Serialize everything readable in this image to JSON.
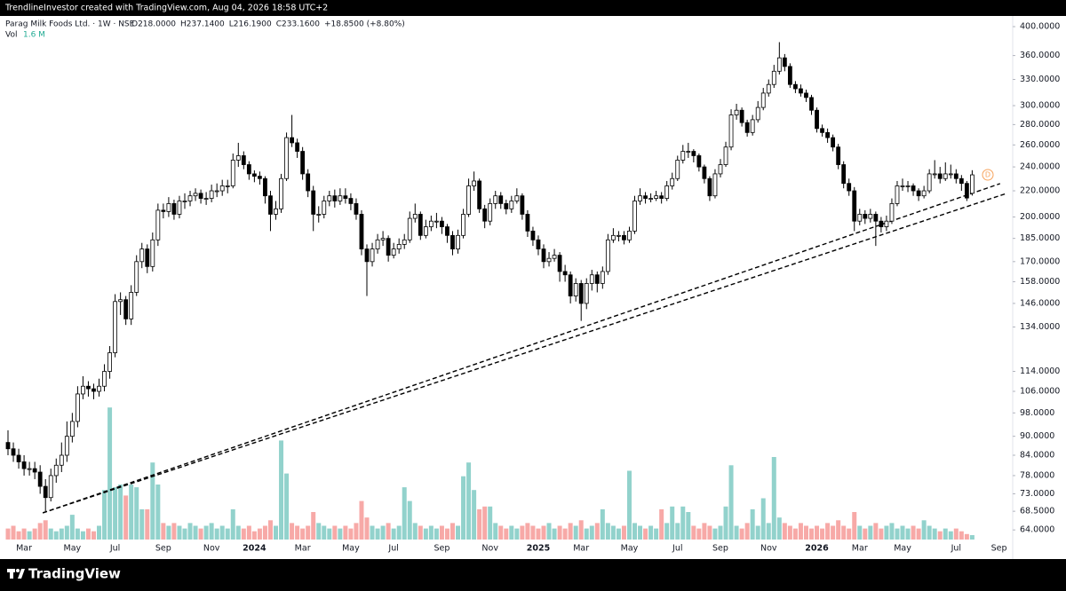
{
  "top_bar": "TrendlineInvestor created with TradingView.com, Aug 04, 2026 18:58 UTC+2",
  "branding": "TradingView",
  "chart_data": {
    "type": "candlestick",
    "symbol": "Parag Milk Foods Ltd. · 1W · NSE",
    "header_ohlc": [
      "O218.0000",
      "H237.1400",
      "L216.1900",
      "C233.1600"
    ],
    "header_change": "+18.8500 (+8.80%)",
    "volume_legend": {
      "label": "Vol",
      "value": "1.6 M"
    },
    "dividend_marker": "D",
    "log_scale": true,
    "grid": false,
    "candle_colors": {
      "up": "#ffffff",
      "down": "#000000",
      "border": "#000000"
    },
    "volume_colors": {
      "up": "#92d2cc",
      "down": "#f7a9a7"
    },
    "trendline_color": "#000000",
    "ylim": [
      61.8,
      415.8
    ],
    "vlim": [
      0,
      50
    ],
    "yticks": [
      {
        "value": 400,
        "label": "400.0000"
      },
      {
        "value": 360,
        "label": "360.0000"
      },
      {
        "value": 330,
        "label": "330.0000"
      },
      {
        "value": 300,
        "label": "300.0000"
      },
      {
        "value": 280,
        "label": "280.0000"
      },
      {
        "value": 260,
        "label": "260.0000"
      },
      {
        "value": 240,
        "label": "240.0000"
      },
      {
        "value": 220,
        "label": "220.0000"
      },
      {
        "value": 200,
        "label": "200.0000"
      },
      {
        "value": 185,
        "label": "185.0000"
      },
      {
        "value": 170,
        "label": "170.0000"
      },
      {
        "value": 158,
        "label": "158.0000"
      },
      {
        "value": 146,
        "label": "146.0000"
      },
      {
        "value": 134,
        "label": "134.0000"
      },
      {
        "value": 114,
        "label": "114.0000"
      },
      {
        "value": 106,
        "label": "106.0000"
      },
      {
        "value": 98,
        "label": "98.0000"
      },
      {
        "value": 90,
        "label": "90.0000"
      },
      {
        "value": 84,
        "label": "84.0000"
      },
      {
        "value": 78,
        "label": "78.0000"
      },
      {
        "value": 73,
        "label": "73.0000"
      },
      {
        "value": 68.5,
        "label": "68.5000"
      },
      {
        "value": 64,
        "label": "64.0000"
      }
    ],
    "categories": [
      null,
      null,
      null,
      "Mar",
      null,
      null,
      null,
      null,
      null,
      null,
      null,
      null,
      "May",
      null,
      null,
      null,
      null,
      null,
      null,
      null,
      "Jul",
      null,
      null,
      null,
      null,
      null,
      null,
      null,
      null,
      "Sep",
      null,
      null,
      null,
      null,
      null,
      null,
      null,
      null,
      "Nov",
      null,
      null,
      null,
      null,
      null,
      null,
      null,
      "2024",
      null,
      null,
      null,
      null,
      null,
      null,
      null,
      null,
      "Mar",
      null,
      null,
      null,
      null,
      null,
      null,
      null,
      null,
      "May",
      null,
      null,
      null,
      null,
      null,
      null,
      null,
      "Jul",
      null,
      null,
      null,
      null,
      null,
      null,
      null,
      null,
      "Sep",
      null,
      null,
      null,
      null,
      null,
      null,
      null,
      null,
      "Nov",
      null,
      null,
      null,
      null,
      null,
      null,
      null,
      null,
      "2025",
      null,
      null,
      null,
      null,
      null,
      null,
      null,
      "Mar",
      null,
      null,
      null,
      null,
      null,
      null,
      null,
      null,
      "May",
      null,
      null,
      null,
      null,
      null,
      null,
      null,
      null,
      "Jul",
      null,
      null,
      null,
      null,
      null,
      null,
      null,
      "Sep",
      null,
      null,
      null,
      null,
      null,
      null,
      null,
      null,
      "Nov",
      null,
      null,
      null,
      null,
      null,
      null,
      null,
      null,
      "2026",
      null,
      null,
      null,
      null,
      null,
      null,
      null,
      "Mar",
      null,
      null,
      null,
      null,
      null,
      null,
      null,
      "May",
      null,
      null,
      null,
      null,
      null,
      null,
      null,
      null,
      null,
      "Jul",
      null,
      null,
      null,
      null,
      null,
      null,
      null,
      "Sep"
    ],
    "open": [
      88,
      86,
      84,
      82,
      80,
      80,
      79,
      75,
      72,
      78,
      81,
      84,
      90,
      95,
      105,
      108,
      107,
      106,
      108,
      114,
      122,
      147,
      148,
      138,
      152,
      170,
      178,
      167,
      184,
      205,
      204,
      210,
      202,
      212,
      212,
      216,
      218,
      214,
      214,
      220,
      220,
      224,
      224,
      246,
      250,
      242,
      234,
      232,
      230,
      216,
      202,
      206,
      230,
      267,
      262,
      254,
      234,
      220,
      202,
      202,
      212,
      216,
      212,
      216,
      214,
      210,
      202,
      178,
      170,
      178,
      184,
      185,
      174,
      178,
      181,
      184,
      199,
      202,
      187,
      193,
      197,
      197,
      193,
      187,
      178,
      187,
      202,
      224,
      228,
      206,
      197,
      210,
      216,
      210,
      206,
      212,
      216,
      202,
      190,
      184,
      178,
      170,
      172,
      174,
      164,
      162,
      150,
      157,
      146,
      157,
      162,
      157,
      164,
      184,
      187,
      187,
      184,
      190,
      212,
      216,
      214,
      214,
      216,
      214,
      224,
      230,
      246,
      254,
      254,
      250,
      240,
      230,
      216,
      234,
      242,
      258,
      290,
      295,
      282,
      272,
      285,
      298,
      314,
      324,
      340,
      357,
      346,
      324,
      319,
      314,
      309,
      295,
      276,
      272,
      267,
      258,
      242,
      226,
      220,
      197,
      202,
      199,
      202,
      197,
      193,
      197,
      210,
      224,
      224,
      224,
      220,
      216,
      220,
      234,
      234,
      230,
      234,
      234,
      230,
      226,
      218,
      null,
      null,
      null,
      null,
      null
    ],
    "high": [
      92,
      88,
      86,
      84,
      82,
      82,
      81,
      77,
      80,
      83,
      88,
      95,
      98,
      108,
      112,
      110,
      109,
      111,
      117,
      125,
      151,
      152,
      150,
      156,
      174,
      182,
      181,
      189,
      210,
      210,
      215,
      213,
      216,
      218,
      220,
      222,
      221,
      219,
      225,
      226,
      229,
      229,
      252,
      262,
      254,
      245,
      237,
      236,
      232,
      220,
      212,
      234,
      272,
      290,
      266,
      258,
      238,
      224,
      208,
      216,
      220,
      221,
      222,
      222,
      218,
      214,
      205,
      181,
      182,
      188,
      190,
      187,
      182,
      185,
      188,
      204,
      210,
      204,
      198,
      201,
      203,
      200,
      195,
      190,
      191,
      206,
      230,
      236,
      230,
      209,
      214,
      220,
      219,
      213,
      216,
      222,
      218,
      205,
      193,
      187,
      181,
      176,
      178,
      176,
      168,
      164,
      160,
      159,
      160,
      165,
      164,
      167,
      188,
      192,
      190,
      190,
      193,
      216,
      222,
      219,
      218,
      220,
      219,
      228,
      235,
      250,
      260,
      262,
      256,
      252,
      242,
      232,
      238,
      247,
      263,
      296,
      302,
      298,
      285,
      290,
      305,
      320,
      330,
      348,
      378,
      362,
      350,
      328,
      324,
      318,
      312,
      298,
      280,
      276,
      270,
      261,
      245,
      230,
      223,
      206,
      205,
      206,
      204,
      200,
      201,
      214,
      228,
      230,
      228,
      226,
      222,
      224,
      238,
      246,
      240,
      244,
      242,
      238,
      233,
      228,
      237.14,
      null,
      null,
      null,
      null,
      null
    ],
    "low": [
      84,
      82,
      80,
      78,
      78,
      77,
      73,
      68.5,
      71,
      76,
      79,
      82,
      88,
      93,
      103,
      104,
      103,
      104,
      106,
      111,
      120,
      140,
      135,
      135,
      150,
      166,
      163,
      164,
      180,
      199,
      200,
      198,
      199,
      206,
      208,
      212,
      210,
      209,
      211,
      215,
      216,
      218,
      222,
      240,
      238,
      229,
      227,
      225,
      210,
      190,
      198,
      203,
      228,
      258,
      248,
      229,
      215,
      190,
      196,
      199,
      208,
      207,
      209,
      210,
      205,
      198,
      174,
      150,
      167,
      175,
      180,
      170,
      172,
      175,
      178,
      182,
      196,
      184,
      185,
      190,
      192,
      188,
      182,
      174,
      175,
      185,
      200,
      220,
      203,
      192,
      194,
      206,
      206,
      202,
      203,
      210,
      198,
      186,
      180,
      174,
      166,
      167,
      170,
      158,
      158,
      146,
      147,
      137,
      143,
      153,
      152,
      154,
      162,
      182,
      183,
      181,
      182,
      188,
      209,
      210,
      211,
      212,
      210,
      212,
      221,
      228,
      243,
      248,
      244,
      236,
      226,
      212,
      214,
      231,
      240,
      255,
      285,
      278,
      268,
      269,
      282,
      295,
      310,
      320,
      336,
      340,
      320,
      314,
      310,
      304,
      290,
      272,
      268,
      262,
      254,
      238,
      222,
      216,
      190,
      194,
      195,
      196,
      180,
      189,
      190,
      195,
      208,
      220,
      219,
      216,
      212,
      214,
      218,
      230,
      226,
      228,
      230,
      226,
      220,
      212,
      216.19,
      null,
      null,
      null,
      null,
      null
    ],
    "close": [
      86,
      84,
      82,
      80,
      80,
      79,
      75,
      72,
      78,
      81,
      84,
      90,
      95,
      105,
      108,
      107,
      106,
      108,
      114,
      122,
      147,
      148,
      138,
      152,
      170,
      178,
      167,
      184,
      205,
      204,
      210,
      202,
      212,
      212,
      216,
      218,
      214,
      214,
      220,
      220,
      224,
      224,
      246,
      250,
      242,
      234,
      232,
      230,
      216,
      202,
      206,
      230,
      267,
      262,
      254,
      234,
      220,
      202,
      202,
      212,
      216,
      212,
      216,
      214,
      210,
      202,
      178,
      170,
      178,
      184,
      185,
      174,
      178,
      181,
      184,
      199,
      202,
      187,
      193,
      197,
      197,
      193,
      187,
      178,
      187,
      202,
      224,
      228,
      206,
      197,
      210,
      216,
      210,
      206,
      212,
      216,
      202,
      190,
      184,
      178,
      170,
      172,
      174,
      164,
      162,
      150,
      157,
      146,
      157,
      162,
      157,
      164,
      184,
      187,
      187,
      184,
      190,
      212,
      216,
      214,
      214,
      216,
      214,
      224,
      230,
      246,
      254,
      254,
      250,
      240,
      230,
      216,
      234,
      242,
      258,
      290,
      295,
      282,
      272,
      285,
      298,
      314,
      324,
      340,
      357,
      346,
      324,
      319,
      314,
      309,
      295,
      276,
      272,
      267,
      258,
      242,
      226,
      220,
      197,
      202,
      199,
      202,
      197,
      193,
      197,
      210,
      224,
      224,
      224,
      220,
      216,
      220,
      234,
      234,
      230,
      234,
      234,
      230,
      226,
      214.31,
      233.16,
      null,
      null,
      null,
      null,
      null
    ],
    "volume": [
      4,
      5,
      3,
      4,
      3,
      4,
      6,
      7,
      4,
      3,
      4,
      5,
      9,
      4,
      3,
      4,
      3,
      5,
      18,
      48,
      19,
      20,
      16,
      20,
      19,
      11,
      11,
      28,
      20,
      6,
      5,
      6,
      5,
      4,
      6,
      5,
      4,
      5,
      6,
      4,
      5,
      4,
      11,
      5,
      4,
      5,
      3,
      4,
      5,
      7,
      5,
      36,
      24,
      6,
      5,
      4,
      5,
      10,
      6,
      5,
      4,
      5,
      4,
      5,
      4,
      6,
      14,
      8,
      5,
      4,
      5,
      6,
      4,
      5,
      19,
      14,
      6,
      5,
      4,
      5,
      4,
      5,
      4,
      6,
      5,
      23,
      28,
      18,
      11,
      12,
      12,
      6,
      5,
      4,
      5,
      4,
      5,
      6,
      5,
      4,
      5,
      6,
      4,
      5,
      4,
      6,
      5,
      7,
      4,
      5,
      6,
      11,
      6,
      5,
      4,
      5,
      25,
      6,
      5,
      4,
      5,
      4,
      11,
      6,
      12,
      6,
      12,
      10,
      5,
      4,
      6,
      5,
      4,
      5,
      12,
      27,
      5,
      4,
      6,
      11,
      5,
      15,
      6,
      30,
      8,
      6,
      5,
      4,
      6,
      5,
      4,
      5,
      4,
      6,
      5,
      7,
      5,
      4,
      10,
      5,
      4,
      5,
      6,
      4,
      5,
      6,
      4,
      5,
      4,
      5,
      4,
      7,
      5,
      4,
      3,
      4,
      3,
      4,
      3,
      2,
      1.6,
      null,
      null,
      null,
      null,
      null
    ],
    "trendlines": [
      {
        "x": [
          6.5,
          185.2
        ],
        "y": [
          68.1,
          225.8
        ]
      },
      {
        "x": [
          6.5,
          186.4
        ],
        "y": [
          68.1,
          217.9
        ]
      }
    ]
  }
}
